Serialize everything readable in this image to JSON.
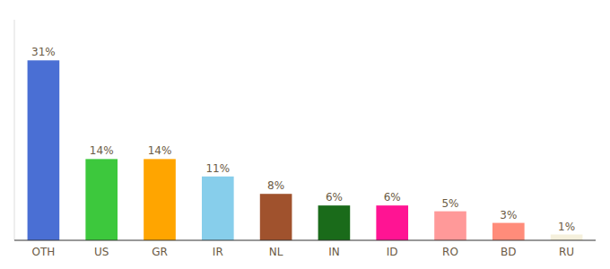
{
  "chart_data": {
    "type": "bar",
    "categories": [
      "OTH",
      "US",
      "GR",
      "IR",
      "NL",
      "IN",
      "ID",
      "RO",
      "BD",
      "RU"
    ],
    "values": [
      31,
      14,
      14,
      11,
      8,
      6,
      6,
      5,
      3,
      1
    ],
    "value_labels": [
      "31%",
      "14%",
      "14%",
      "11%",
      "8%",
      "6%",
      "6%",
      "5%",
      "3%",
      "1%"
    ],
    "colors": [
      "#4A6FD4",
      "#3DC83D",
      "#FFA500",
      "#87CEEB",
      "#A0522D",
      "#1A6B1A",
      "#FF1493",
      "#FF9999",
      "#FF8C7A",
      "#F5F0DC"
    ],
    "ylim": [
      0,
      38
    ],
    "grid": false,
    "data_labels": true,
    "tick_labels": "x"
  }
}
